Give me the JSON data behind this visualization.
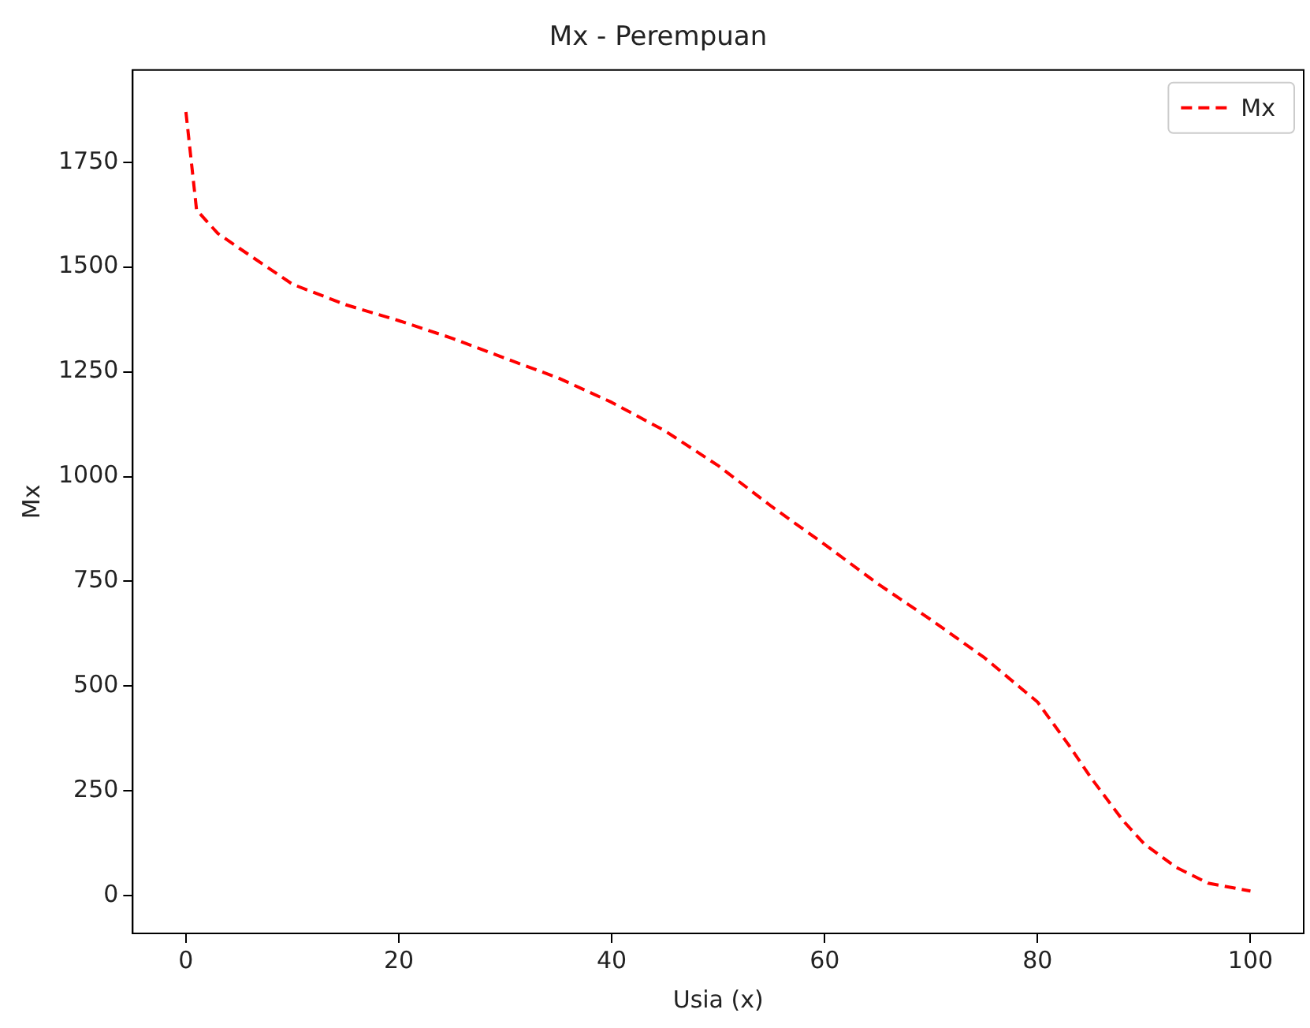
{
  "chart_data": {
    "type": "line",
    "title": "Mx - Perempuan",
    "xlabel": "Usia (x)",
    "ylabel": "Mx",
    "x": [
      0,
      1,
      3,
      5,
      10,
      15,
      20,
      25,
      30,
      35,
      40,
      45,
      50,
      55,
      60,
      65,
      70,
      75,
      80,
      83,
      85,
      88,
      90,
      93,
      96,
      100
    ],
    "series": [
      {
        "name": "Mx",
        "color": "#ff0000",
        "values": [
          1870,
          1636,
          1580,
          1545,
          1459,
          1410,
          1372,
          1330,
          1282,
          1235,
          1177,
          1109,
          1026,
          929,
          838,
          744,
          658,
          568,
          462,
          357,
          282,
          180,
          124,
          68,
          30,
          11
        ]
      }
    ],
    "xlim": [
      -5,
      105
    ],
    "ylim": [
      -90,
      1970
    ],
    "xticks": [
      0,
      20,
      40,
      60,
      80,
      100
    ],
    "yticks": [
      0,
      250,
      500,
      750,
      1000,
      1250,
      1500,
      1750
    ],
    "grid": false,
    "legend": "top right",
    "marker": "none",
    "line_style": "dashed"
  }
}
